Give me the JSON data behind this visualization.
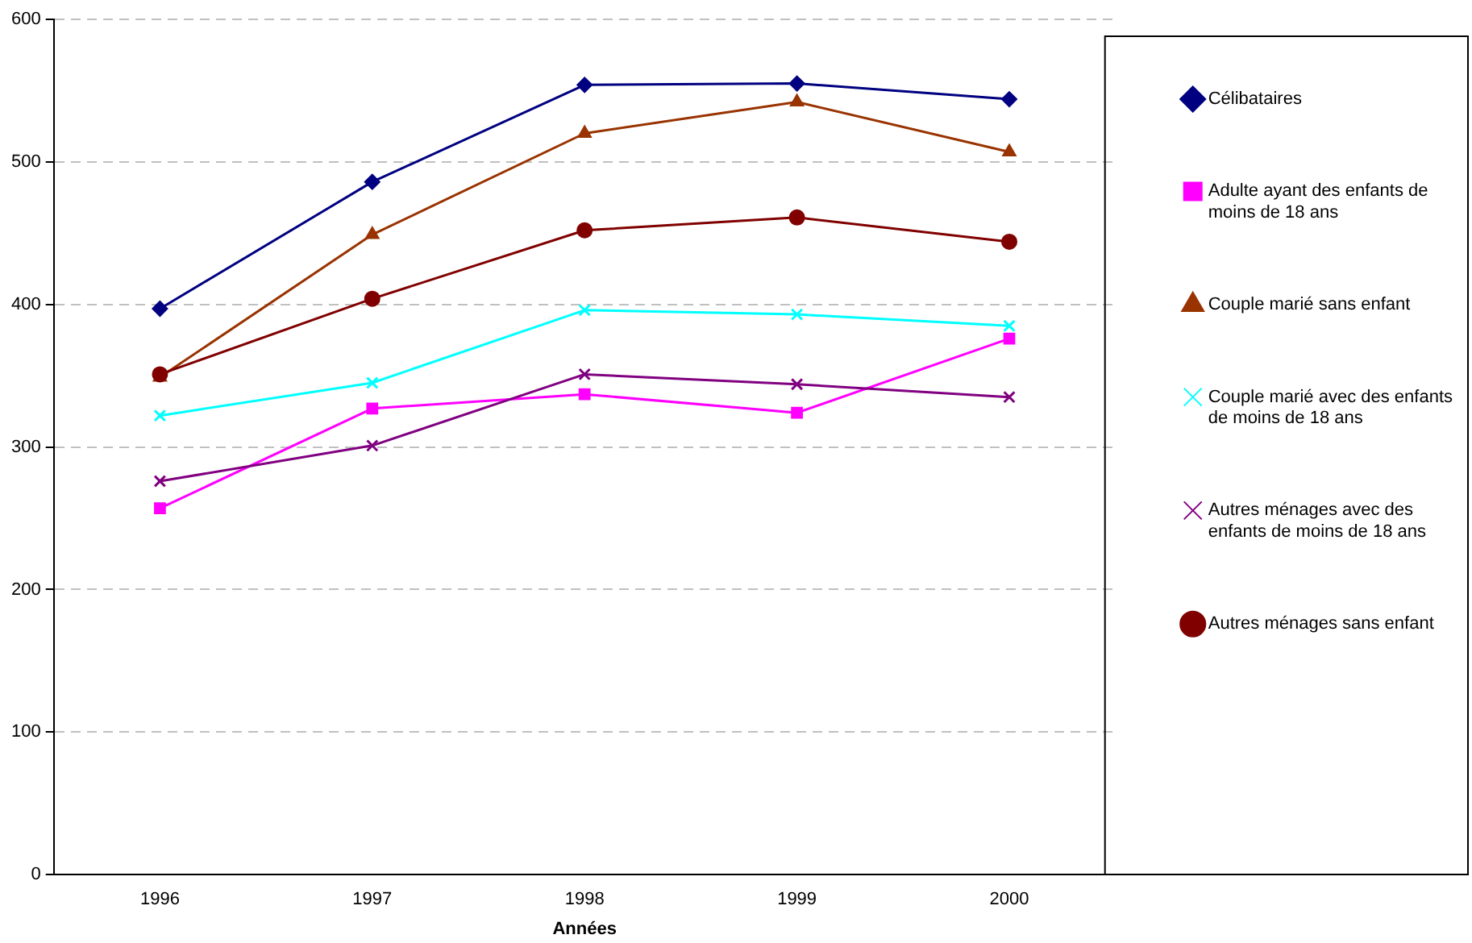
{
  "chart_data": {
    "type": "line",
    "xlabel": "Années",
    "categories": [
      "1996",
      "1997",
      "1998",
      "1999",
      "2000"
    ],
    "ylim": [
      0,
      600
    ],
    "yticks": [
      0,
      100,
      200,
      300,
      400,
      500,
      600
    ],
    "grid": "y",
    "legend": "right",
    "series": [
      {
        "name": "Célibataires",
        "color": "#000080",
        "marker": "diamond",
        "values": [
          397,
          486,
          554,
          555,
          544
        ]
      },
      {
        "name": "Adulte ayant des enfants de moins de 18 ans",
        "color": "#ff00ff",
        "marker": "square",
        "values": [
          257,
          327,
          337,
          324,
          376
        ]
      },
      {
        "name": "Couple marié sans enfant",
        "color": "#993300",
        "marker": "triangle",
        "values": [
          349,
          449,
          520,
          542,
          507
        ]
      },
      {
        "name": "Couple marié avec des enfants de moins de 18 ans",
        "color": "#00ffff",
        "marker": "cross",
        "values": [
          322,
          345,
          396,
          393,
          385
        ]
      },
      {
        "name": "Autres ménages avec des enfants de moins de 18 ans",
        "color": "#800080",
        "marker": "cross",
        "values": [
          276,
          301,
          351,
          344,
          335
        ]
      },
      {
        "name": "Autres ménages sans enfant",
        "color": "#800000",
        "marker": "circle",
        "values": [
          351,
          404,
          452,
          461,
          444
        ]
      }
    ]
  }
}
